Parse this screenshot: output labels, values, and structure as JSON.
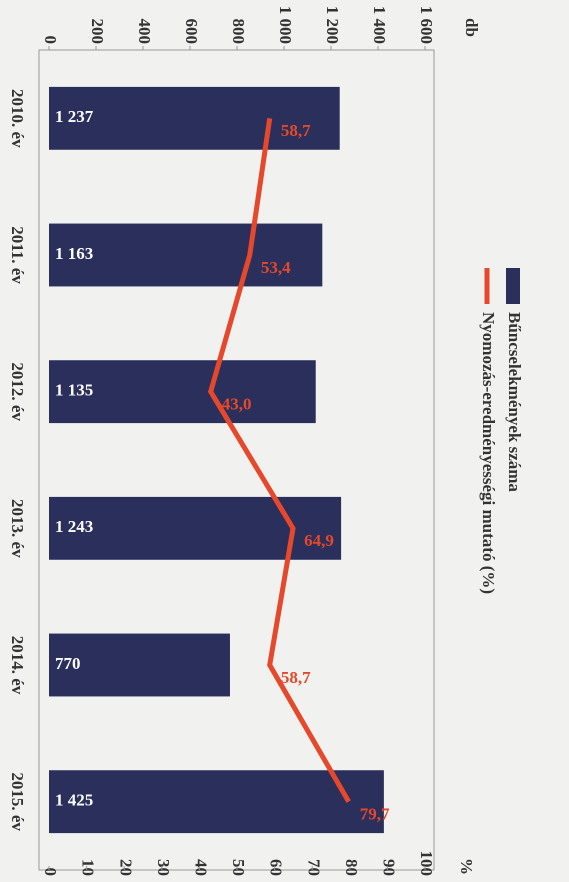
{
  "chart_data": {
    "type": "bar_line",
    "y_label": "db",
    "y2_label": "%",
    "categories": [
      "2010. év",
      "2011. év",
      "2012. év",
      "2013. év",
      "2014. év",
      "2015. év"
    ],
    "series": [
      {
        "name": "Bűncselekmények száma",
        "type": "bar",
        "color": "#2b2f5c",
        "values": [
          1237,
          1163,
          1135,
          1243,
          770,
          1425
        ],
        "value_labels": [
          "1 237",
          "1 163",
          "1 135",
          "1 243",
          "770",
          "1 425"
        ]
      },
      {
        "name": "Nyomozás-eredményességi mutató (%)",
        "type": "line",
        "axis": "y2",
        "color": "#e5482b",
        "values": [
          58.7,
          53.4,
          43.0,
          64.9,
          58.7,
          79.7
        ],
        "value_labels": [
          "58,7",
          "53,4",
          "43,0",
          "64,9",
          "58,7",
          "79,7"
        ]
      }
    ],
    "ylim": [
      0,
      1600
    ],
    "yticks": [
      0,
      200,
      400,
      600,
      800,
      {
        "value": 1000,
        "label": "1 000"
      },
      {
        "value": 1200,
        "label": "1 200"
      },
      {
        "value": 1400,
        "label": "1 400"
      },
      {
        "value": 1600,
        "label": "1 600"
      }
    ],
    "y2lim": [
      0,
      100
    ],
    "y2ticks": [
      0,
      10,
      20,
      30,
      40,
      50,
      60,
      70,
      80,
      90,
      100
    ]
  }
}
